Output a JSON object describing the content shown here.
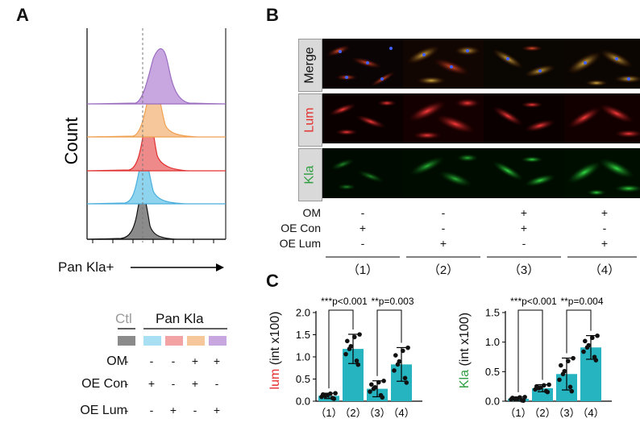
{
  "panels": {
    "a": "A",
    "b": "B",
    "c": "C"
  },
  "colors": {
    "purple": "#b48fd0",
    "orange": "#f6bb82",
    "red": "#ef6a6a",
    "blue": "#8ed4ef",
    "gray": "#8b8b8b",
    "teal": "#26b5c0",
    "red_text": "#e53030",
    "green_text": "#2e9e3e"
  },
  "flow": {
    "ylabel": "Count",
    "xlabel": "Pan Kla+",
    "histograms": [
      "Ctl (gray)",
      "Pan Kla (blue)",
      "Pan Kla (red)",
      "Pan Kla (orange)",
      "Pan Kla (purple)"
    ]
  },
  "legend_a": {
    "ctl_label": "Ctl",
    "pan_label": "Pan Kla",
    "rows": [
      {
        "label": "OM",
        "signs": [
          "-",
          "-",
          "-",
          "+",
          "+"
        ]
      },
      {
        "label": "OE Con",
        "signs": [
          "-",
          "+",
          "-",
          "+",
          "-"
        ]
      },
      {
        "label": "OE Lum",
        "signs": [
          "-",
          "-",
          "+",
          "-",
          "+"
        ]
      }
    ]
  },
  "microscopy": {
    "stains": [
      "Merge",
      "Lum",
      "Kla"
    ],
    "conditions": [
      {
        "label": "OM",
        "signs": [
          "-",
          "-",
          "+",
          "+"
        ]
      },
      {
        "label": "OE Con",
        "signs": [
          "+",
          "-",
          "+",
          "-"
        ]
      },
      {
        "label": "OE Lum",
        "signs": [
          "-",
          "+",
          "-",
          "+"
        ]
      }
    ],
    "groups": [
      "（1）",
      "（2）",
      "（3）",
      "（4）"
    ]
  },
  "chart_data": [
    {
      "type": "bar",
      "title": "",
      "ylabel_main": "lum",
      "ylabel_rest": " (int x100)",
      "categories": [
        "（1）",
        "（2）",
        "（3）",
        "（4）"
      ],
      "values": [
        0.12,
        1.18,
        0.28,
        0.83
      ],
      "errors": [
        0.06,
        0.33,
        0.18,
        0.38
      ],
      "yticks": [
        "0.0",
        "0.5",
        "1.0",
        "1.5",
        "2.0"
      ],
      "ylim": [
        0,
        2.0
      ],
      "annotations": [
        {
          "text": "***p<0.001",
          "from": 0,
          "to": 1
        },
        {
          "text": "**p=0.003",
          "from": 2,
          "to": 3
        }
      ]
    },
    {
      "type": "bar",
      "title": "",
      "ylabel_main": "Kla",
      "ylabel_rest": " (int x100)",
      "categories": [
        "（1）",
        "（2）",
        "（3）",
        "（4）"
      ],
      "values": [
        0.04,
        0.22,
        0.46,
        0.91
      ],
      "errors": [
        0.03,
        0.06,
        0.27,
        0.2
      ],
      "yticks": [
        "0.0",
        "0.5",
        "1.0",
        "1.5"
      ],
      "ylim": [
        0,
        1.5
      ],
      "annotations": [
        {
          "text": "***p<0.001",
          "from": 0,
          "to": 1
        },
        {
          "text": "**p=0.004",
          "from": 2,
          "to": 3
        }
      ]
    }
  ]
}
